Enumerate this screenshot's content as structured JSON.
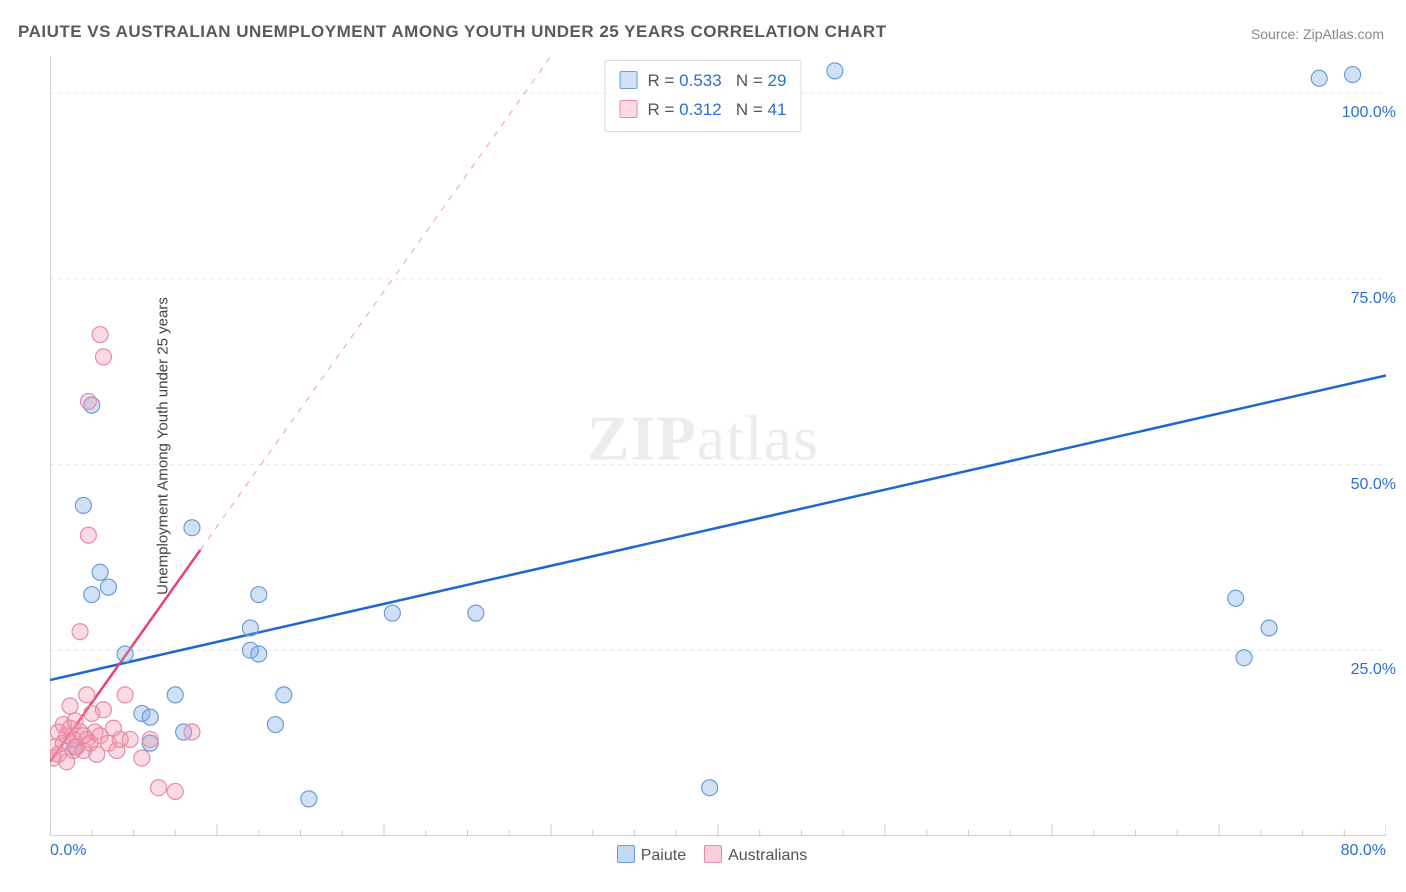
{
  "title": "PAIUTE VS AUSTRALIAN UNEMPLOYMENT AMONG YOUTH UNDER 25 YEARS CORRELATION CHART",
  "source_label": "Source: ZipAtlas.com",
  "y_axis_label": "Unemployment Among Youth under 25 years",
  "watermark": {
    "part1": "ZIP",
    "part2": "atlas"
  },
  "chart": {
    "type": "scatter",
    "background_color": "#ffffff",
    "grid_color": "#e8e8e8",
    "axis_color": "#d4d4d4",
    "tick_color": "#c8c8c8",
    "xlim": [
      0,
      80
    ],
    "ylim": [
      0,
      105
    ],
    "x_tick_step": 2.5,
    "x_tick_major_step": 10,
    "x_tick_labels": {
      "0": "0.0%",
      "80": "80.0%"
    },
    "y_ticks": [
      25,
      50,
      75,
      100
    ],
    "y_tick_labels": [
      "25.0%",
      "50.0%",
      "75.0%",
      "100.0%"
    ],
    "label_color": "#2b6fd6",
    "label_fontsize": 16,
    "series": [
      {
        "name": "Paiute",
        "marker_fill": "rgba(120,170,230,0.35)",
        "marker_stroke": "#6a9ed8",
        "marker_radius": 8,
        "line_color": "#1f66d1",
        "line_width": 2.5,
        "line_dash_after_x": null,
        "R": "0.533",
        "N": "29",
        "trend": {
          "x1": 0,
          "y1": 21,
          "x2": 80,
          "y2": 62
        },
        "points": [
          [
            2.0,
            44.5
          ],
          [
            2.5,
            32.5
          ],
          [
            3.5,
            33.5
          ],
          [
            3.0,
            35.5
          ],
          [
            4.5,
            24.5
          ],
          [
            5.5,
            16.5
          ],
          [
            6.0,
            12.5
          ],
          [
            7.5,
            19.0
          ],
          [
            6.0,
            16.0
          ],
          [
            8.0,
            14.0
          ],
          [
            8.5,
            41.5
          ],
          [
            12.0,
            28.0
          ],
          [
            12.0,
            25.0
          ],
          [
            12.5,
            24.5
          ],
          [
            12.5,
            32.5
          ],
          [
            13.5,
            15.0
          ],
          [
            14.0,
            19.0
          ],
          [
            15.5,
            5.0
          ],
          [
            20.5,
            30.0
          ],
          [
            25.5,
            30.0
          ],
          [
            39.5,
            6.5
          ],
          [
            47.0,
            103.0
          ],
          [
            71.0,
            32.0
          ],
          [
            73.0,
            28.0
          ],
          [
            71.5,
            24.0
          ],
          [
            76.0,
            102.0
          ],
          [
            78.0,
            102.5
          ],
          [
            2.5,
            58.0
          ],
          [
            1.5,
            12.0
          ]
        ]
      },
      {
        "name": "Australians",
        "marker_fill": "rgba(240,150,175,0.35)",
        "marker_stroke": "#e88aa5",
        "marker_radius": 8,
        "line_color": "#e6456f",
        "line_width": 2.5,
        "line_dash_after_x": 9,
        "R": "0.312",
        "N": "41",
        "trend": {
          "x1": 0,
          "y1": 10,
          "x2": 30,
          "y2": 105
        },
        "points": [
          [
            0.2,
            10.5
          ],
          [
            0.3,
            12.0
          ],
          [
            0.5,
            14.0
          ],
          [
            0.5,
            11.0
          ],
          [
            0.8,
            12.5
          ],
          [
            0.8,
            15.0
          ],
          [
            1.0,
            10.0
          ],
          [
            1.0,
            13.5
          ],
          [
            1.2,
            14.5
          ],
          [
            1.2,
            17.5
          ],
          [
            1.4,
            11.5
          ],
          [
            1.4,
            13.0
          ],
          [
            1.5,
            15.5
          ],
          [
            1.6,
            12.0
          ],
          [
            1.8,
            14.0
          ],
          [
            1.8,
            27.5
          ],
          [
            2.0,
            11.5
          ],
          [
            2.2,
            13.0
          ],
          [
            2.2,
            19.0
          ],
          [
            2.3,
            40.5
          ],
          [
            2.4,
            12.5
          ],
          [
            2.5,
            16.5
          ],
          [
            2.7,
            14.0
          ],
          [
            2.8,
            11.0
          ],
          [
            3.0,
            13.5
          ],
          [
            3.0,
            67.5
          ],
          [
            3.2,
            64.5
          ],
          [
            3.2,
            17.0
          ],
          [
            3.5,
            12.5
          ],
          [
            3.8,
            14.5
          ],
          [
            4.0,
            11.5
          ],
          [
            4.2,
            13.0
          ],
          [
            4.5,
            19.0
          ],
          [
            4.8,
            13.0
          ],
          [
            5.5,
            10.5
          ],
          [
            6.0,
            13.0
          ],
          [
            6.5,
            6.5
          ],
          [
            7.5,
            6.0
          ],
          [
            8.5,
            14.0
          ],
          [
            2.3,
            58.5
          ],
          [
            2.0,
            13.5
          ]
        ]
      }
    ],
    "legend_bottom": [
      {
        "label": "Paiute",
        "fill": "rgba(120,170,230,0.45)",
        "stroke": "#6a9ed8"
      },
      {
        "label": "Australians",
        "fill": "rgba(240,150,175,0.45)",
        "stroke": "#e88aa5"
      }
    ]
  }
}
